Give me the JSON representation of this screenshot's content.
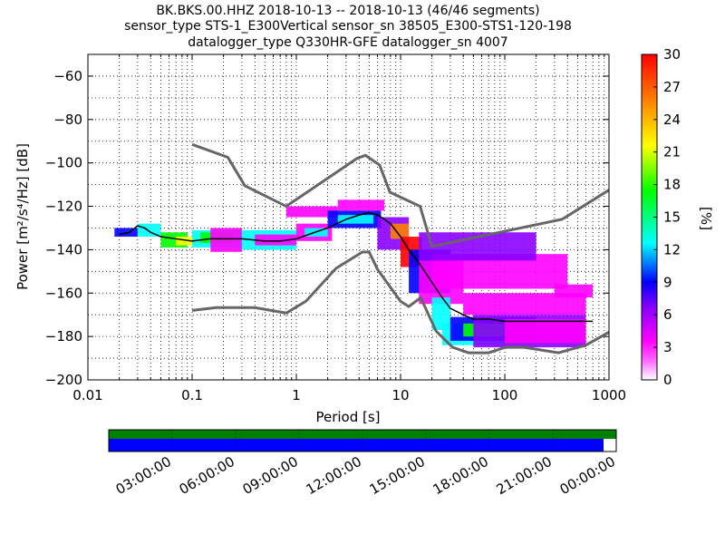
{
  "chart_data": {
    "type": "heatmap",
    "title": {
      "line1": "BK.BKS.00.HHZ   2018-10-13 -- 2018-10-13  (46/46 segments)",
      "line2": "sensor_type STS-1_E300Vertical sensor_sn 38505_E300-STS1-120-198",
      "line3": "datalogger_type Q330HR-GFE datalogger_sn 4007"
    },
    "xlabel": "Period [s]",
    "ylabel": "Power [m²/s⁴/Hz] [dB]",
    "x_scale": "log",
    "xlim": [
      0.01,
      1000
    ],
    "ylim": [
      -200,
      -50
    ],
    "x_ticks": [
      "0.01",
      "0.1",
      "1",
      "10",
      "100",
      "1000"
    ],
    "y_ticks": [
      "−200",
      "−180",
      "−160",
      "−140",
      "−120",
      "−100",
      "−80",
      "−60"
    ],
    "grid": true,
    "colorbar": {
      "label": "[%]",
      "range": [
        0,
        30
      ],
      "ticks": [
        "0",
        "3",
        "6",
        "9",
        "12",
        "15",
        "18",
        "21",
        "24",
        "27",
        "30"
      ],
      "colors": [
        "#ffffff",
        "#ff00ff",
        "#8b00ff",
        "#0000ff",
        "#00ffff",
        "#00ff00",
        "#ffff00",
        "#ff8000",
        "#ff0000"
      ]
    },
    "noise_models": [
      {
        "name": "NHNM",
        "color": "#666666",
        "x": [
          0.1,
          0.22,
          0.32,
          0.8,
          3.8,
          4.6,
          6.3,
          7.9,
          15.4,
          20,
          354.8,
          1000
        ],
        "y": [
          -91.5,
          -97.4,
          -110.5,
          -120,
          -98,
          -96.5,
          -101,
          -113.5,
          -120,
          -138.5,
          -126,
          -112.5
        ]
      },
      {
        "name": "NLNM",
        "color": "#666666",
        "x": [
          0.1,
          0.17,
          0.4,
          0.8,
          1.24,
          2.4,
          4.3,
          5,
          6,
          10,
          12,
          15.6,
          21.9,
          31.6,
          45,
          70,
          101,
          154,
          328,
          600,
          1000
        ],
        "y": [
          -168,
          -166.7,
          -166.7,
          -169.2,
          -163.7,
          -148.6,
          -141.1,
          -141.1,
          -149,
          -163.8,
          -166.2,
          -162.1,
          -177.5,
          -185,
          -187.5,
          -187.5,
          -185,
          -185,
          -187.5,
          -184,
          -178
        ]
      }
    ],
    "mean_curve": {
      "color": "#000000",
      "x": [
        0.02,
        0.025,
        0.03,
        0.035,
        0.04,
        0.05,
        0.07,
        0.1,
        0.15,
        0.2,
        0.3,
        0.5,
        0.7,
        1,
        1.5,
        2,
        3,
        4,
        5,
        6,
        7,
        8,
        10,
        12,
        15,
        20,
        25,
        30,
        40,
        50,
        70,
        100,
        150,
        200,
        300,
        500,
        700
      ],
      "y": [
        -133,
        -132,
        -129,
        -130,
        -132,
        -134,
        -135,
        -136,
        -135,
        -135,
        -135,
        -136,
        -136,
        -135,
        -132,
        -130,
        -126,
        -124,
        -123,
        -124,
        -126,
        -128,
        -134,
        -140,
        -146,
        -155,
        -162,
        -167,
        -170,
        -172,
        -172,
        -173,
        -173,
        -173,
        -173,
        -173,
        -173
      ]
    },
    "histogram_bands": [
      {
        "x": [
          0.018,
          0.03
        ],
        "y": [
          -134,
          -130
        ],
        "color": "#0000ff"
      },
      {
        "x": [
          0.03,
          0.05
        ],
        "y": [
          -134,
          -128
        ],
        "color": "#00ffff"
      },
      {
        "x": [
          0.05,
          0.09
        ],
        "y": [
          -139,
          -132
        ],
        "color": "#00ff00"
      },
      {
        "x": [
          0.07,
          0.12
        ],
        "y": [
          -138,
          -134
        ],
        "color": "#ffff00"
      },
      {
        "x": [
          0.1,
          0.3
        ],
        "y": [
          -139,
          -131
        ],
        "color": "#00ffff"
      },
      {
        "x": [
          0.12,
          0.25
        ],
        "y": [
          -137,
          -132
        ],
        "color": "#00ff00"
      },
      {
        "x": [
          0.15,
          0.3
        ],
        "y": [
          -141,
          -130
        ],
        "color": "#ff00ff"
      },
      {
        "x": [
          0.3,
          1.0
        ],
        "y": [
          -140,
          -131
        ],
        "color": "#00ffff"
      },
      {
        "x": [
          0.4,
          1.0
        ],
        "y": [
          -138,
          -133
        ],
        "color": "#ff00ff"
      },
      {
        "x": [
          1.0,
          2.2
        ],
        "y": [
          -136,
          -128
        ],
        "color": "#ff00ff"
      },
      {
        "x": [
          1.2,
          2.0
        ],
        "y": [
          -134,
          -130
        ],
        "color": "#00ffff"
      },
      {
        "x": [
          0.8,
          2.5
        ],
        "y": [
          -125,
          -120
        ],
        "color": "#ff00ff"
      },
      {
        "x": [
          2.0,
          6.5
        ],
        "y": [
          -130,
          -122
        ],
        "color": "#0000ff"
      },
      {
        "x": [
          2.5,
          5.5
        ],
        "y": [
          -128,
          -124
        ],
        "color": "#00ffff"
      },
      {
        "x": [
          2.5,
          7.0
        ],
        "y": [
          -122,
          -117
        ],
        "color": "#ff00ff"
      },
      {
        "x": [
          6.0,
          12.0
        ],
        "y": [
          -140,
          -125
        ],
        "color": "#8b00ff"
      },
      {
        "x": [
          8.0,
          12.0
        ],
        "y": [
          -135,
          -128
        ],
        "color": "#ff8000"
      },
      {
        "x": [
          10.0,
          16.0
        ],
        "y": [
          -148,
          -134
        ],
        "color": "#ff0000"
      },
      {
        "x": [
          12.0,
          30.0
        ],
        "y": [
          -160,
          -140
        ],
        "color": "#0000ff"
      },
      {
        "x": [
          15.0,
          40.0
        ],
        "y": [
          -165,
          -145
        ],
        "color": "#ff00ff"
      },
      {
        "x": [
          20.0,
          30.0
        ],
        "y": [
          -177,
          -162
        ],
        "color": "#00ffff"
      },
      {
        "x": [
          25.0,
          100.0
        ],
        "y": [
          -184,
          -174
        ],
        "color": "#00ffff"
      },
      {
        "x": [
          30.0,
          200.0
        ],
        "y": [
          -182,
          -171
        ],
        "color": "#0000ff"
      },
      {
        "x": [
          40.0,
          200.0
        ],
        "y": [
          -180,
          -174
        ],
        "color": "#00ff00"
      },
      {
        "x": [
          50.0,
          600.0
        ],
        "y": [
          -185,
          -170
        ],
        "color": "#8b00ff"
      },
      {
        "x": [
          100.0,
          600.0
        ],
        "y": [
          -183,
          -172
        ],
        "color": "#ff00ff"
      },
      {
        "x": [
          40.0,
          600.0
        ],
        "y": [
          -170,
          -160
        ],
        "color": "#ff00ff"
      },
      {
        "x": [
          20.0,
          400.0
        ],
        "y": [
          -158,
          -142
        ],
        "color": "#ff00ff"
      },
      {
        "x": [
          15.0,
          200.0
        ],
        "y": [
          -145,
          -132
        ],
        "color": "#8b00ff"
      },
      {
        "x": [
          300.0,
          700.0
        ],
        "y": [
          -162,
          -156
        ],
        "color": "#ff00ff"
      }
    ],
    "time_axis": {
      "ticks": [
        "03:00:00",
        "06:00:00",
        "09:00:00",
        "12:00:00",
        "15:00:00",
        "18:00:00",
        "21:00:00",
        "00:00:00"
      ],
      "range_hours": [
        0,
        24
      ],
      "top_bar_color": "#008000",
      "bottom_bar_color": "#0000ff",
      "top_bar_coverage": [
        0,
        24
      ],
      "bottom_bar_coverage": [
        0,
        23.4
      ]
    }
  }
}
